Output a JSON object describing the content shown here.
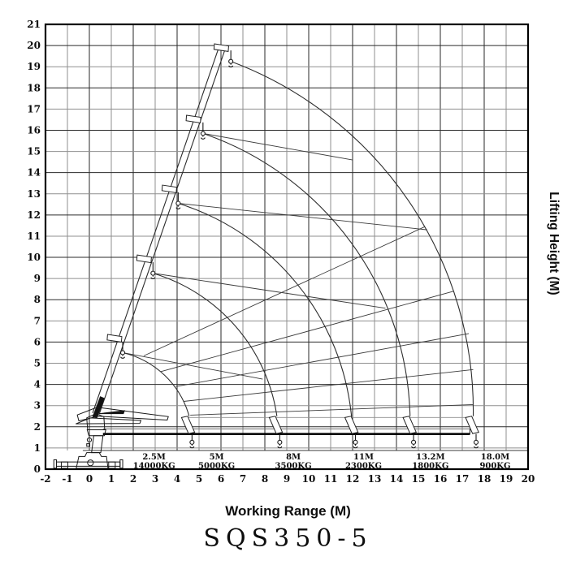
{
  "captions": {
    "xlabel": "Working Range (M)",
    "ylabel": "Lifting Height (M)",
    "title": "SQS350-5"
  },
  "chart_data": {
    "type": "line",
    "title": "SQS350-5",
    "xlabel": "Working Range (M)",
    "ylabel": "Lifting Height (M)",
    "xlim": [
      -2,
      20
    ],
    "ylim": [
      0,
      21
    ],
    "grid": true,
    "grid_colors": {
      "major": "#2a2a2a",
      "minor": "#8f8f8f"
    },
    "line_color": "#2b2b2b",
    "x_ticks": [
      -2,
      -1,
      0,
      1,
      2,
      3,
      4,
      5,
      6,
      7,
      8,
      9,
      10,
      11,
      12,
      13,
      14,
      15,
      16,
      17,
      18,
      19,
      20
    ],
    "y_ticks": [
      0,
      1,
      2,
      3,
      4,
      5,
      6,
      7,
      8,
      9,
      10,
      11,
      12,
      13,
      14,
      15,
      16,
      17,
      18,
      19,
      20,
      21
    ],
    "load_table": [
      {
        "boom_length": "2.5M",
        "capacity": "14000KG",
        "label_x": 2.95
      },
      {
        "boom_length": "5M",
        "capacity": "5000KG",
        "label_x": 5.8
      },
      {
        "boom_length": "8M",
        "capacity": "3500KG",
        "label_x": 9.3
      },
      {
        "boom_length": "11M",
        "capacity": "2300KG",
        "label_x": 12.5
      },
      {
        "boom_length": "13.2M",
        "capacity": "1800KG",
        "label_x": 15.55
      },
      {
        "boom_length": "18.0M",
        "capacity": "900KG",
        "label_x": 18.5
      }
    ],
    "pivot": [
      0.35,
      2.2
    ],
    "boom_angle_deg": 70.5,
    "raised_boom": {
      "base1": [
        0.45,
        2.6
      ],
      "tip1": [
        6.22,
        19.92
      ],
      "base2": [
        0.15,
        2.65
      ],
      "tip2": [
        5.93,
        19.99
      ],
      "section_tips": [
        [
          1.35,
          6.2
        ],
        [
          2.7,
          9.95
        ],
        [
          3.85,
          13.25
        ],
        [
          4.95,
          16.55
        ],
        [
          6.22,
          19.92
        ]
      ],
      "hooks": [
        [
          1.52,
          5.5
        ],
        [
          2.9,
          9.25
        ],
        [
          4.05,
          12.55
        ],
        [
          5.18,
          15.85
        ],
        [
          6.45,
          19.25
        ]
      ]
    },
    "horizontal_boom": {
      "y_bottom": 1.66,
      "y_top": 1.9,
      "x_start": 0.62,
      "x_end": 17.35,
      "heads_x": [
        4.5,
        8.5,
        11.95,
        14.6,
        17.45
      ],
      "hooks_x": [
        4.68,
        8.68,
        12.13,
        14.78,
        17.63
      ],
      "head_connector_y": 2.44
    },
    "envelope_arcs": [
      {
        "from": [
          1.52,
          5.5
        ],
        "to": [
          4.55,
          2.5
        ],
        "r": 4.2
      },
      {
        "from": [
          2.9,
          9.25
        ],
        "to": [
          8.55,
          2.5
        ],
        "r": 8.2
      },
      {
        "from": [
          4.05,
          12.55
        ],
        "to": [
          11.95,
          2.5
        ],
        "r": 11.6
      },
      {
        "from": [
          5.18,
          15.85
        ],
        "to": [
          14.62,
          2.5
        ],
        "r": 14.3
      },
      {
        "from": [
          6.45,
          19.25
        ],
        "to": [
          17.5,
          2.5
        ],
        "r": 17.4
      }
    ],
    "fan_lines": [
      [
        2.48,
        5.35,
        15.3,
        11.45
      ],
      [
        3.24,
        4.6,
        16.6,
        8.4
      ],
      [
        3.95,
        3.9,
        17.3,
        6.4
      ],
      [
        4.3,
        3.2,
        17.5,
        4.7
      ],
      [
        4.6,
        2.55,
        17.5,
        3.05
      ]
    ],
    "step_lines": [
      [
        1.52,
        5.5,
        7.9,
        4.25
      ],
      [
        2.9,
        9.25,
        13.5,
        7.6
      ],
      [
        4.05,
        12.55,
        15.4,
        11.3
      ],
      [
        5.18,
        15.85,
        12.0,
        14.6
      ]
    ],
    "band_line_y": 0.88
  }
}
